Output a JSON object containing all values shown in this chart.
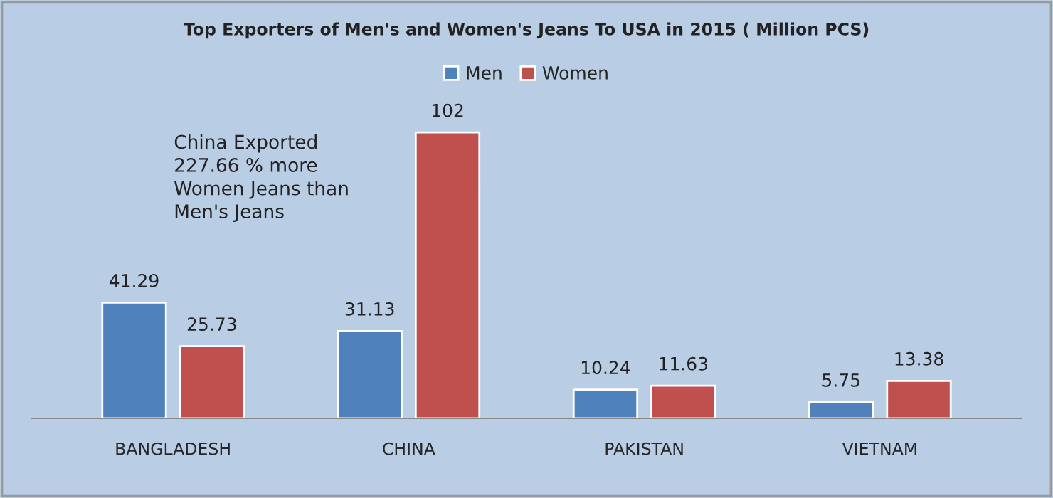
{
  "chart_data": {
    "type": "bar",
    "title": "Top Exporters of Men's and Women's Jeans To USA in 2015 ( Million PCS)",
    "categories": [
      "BANGLADESH",
      "CHINA",
      "PAKISTAN",
      "VIETNAM"
    ],
    "series": [
      {
        "name": "Men",
        "color": "#4f81bd",
        "values": [
          41.29,
          31.13,
          10.24,
          5.75
        ]
      },
      {
        "name": "Women",
        "color": "#c0504d",
        "values": [
          25.73,
          102,
          11.63,
          13.38
        ]
      }
    ],
    "data_labels": true,
    "legend": "top",
    "grid": false,
    "annotations": [
      "China Exported\n227.66 % more\nWomen Jeans than\nMen's Jeans"
    ]
  }
}
